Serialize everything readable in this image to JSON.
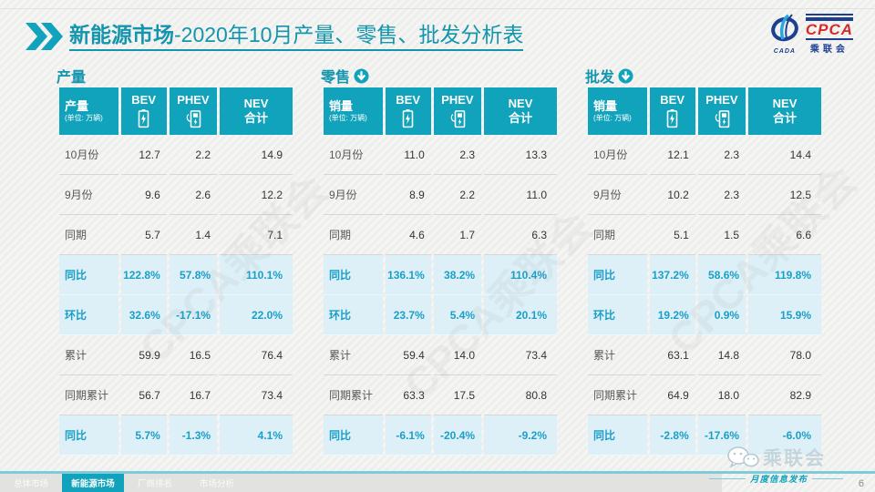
{
  "colors": {
    "accent": "#12a3bc",
    "accent_dark": "#1295ad",
    "accent_light": "#7ecbda",
    "highlight_bg": "#ddeff7",
    "highlight_text": "#1a9fc8"
  },
  "title": {
    "bold": "新能源市场",
    "rest": "-2020年10月产量、零售、批发分析表"
  },
  "logo": {
    "cpca": "CPCA",
    "cn_name": "乘联会",
    "cada": "CADA"
  },
  "watermark": "CPCA乘联会",
  "page_number": "6",
  "tables": [
    {
      "section": "产量",
      "header": {
        "metric": "产量",
        "unit": "(单位: 万辆)",
        "bev": "BEV",
        "phev": "PHEV",
        "nev_line1": "NEV",
        "nev_line2": "合计"
      },
      "rows": [
        {
          "label": "10月份",
          "values": [
            "12.7",
            "2.2",
            "14.9"
          ],
          "highlight": false
        },
        {
          "label": "9月份",
          "values": [
            "9.6",
            "2.6",
            "12.2"
          ],
          "highlight": false
        },
        {
          "label": "同期",
          "values": [
            "5.7",
            "1.4",
            "7.1"
          ],
          "highlight": false
        },
        {
          "label": "同比",
          "values": [
            "122.8%",
            "57.8%",
            "110.1%"
          ],
          "highlight": true
        },
        {
          "label": "环比",
          "values": [
            "32.6%",
            "-17.1%",
            "22.0%"
          ],
          "highlight": true
        },
        {
          "label": "累计",
          "values": [
            "59.9",
            "16.5",
            "76.4"
          ],
          "highlight": false
        },
        {
          "label": "同期累计",
          "values": [
            "56.7",
            "16.7",
            "73.4"
          ],
          "highlight": false
        },
        {
          "label": "同比",
          "values": [
            "5.7%",
            "-1.3%",
            "4.1%"
          ],
          "highlight": true
        }
      ]
    },
    {
      "section": "零售",
      "header": {
        "metric": "销量",
        "unit": "(单位: 万辆)",
        "bev": "BEV",
        "phev": "PHEV",
        "nev_line1": "NEV",
        "nev_line2": "合计"
      },
      "rows": [
        {
          "label": "10月份",
          "values": [
            "11.0",
            "2.3",
            "13.3"
          ],
          "highlight": false
        },
        {
          "label": "9月份",
          "values": [
            "8.9",
            "2.2",
            "11.0"
          ],
          "highlight": false
        },
        {
          "label": "同期",
          "values": [
            "4.6",
            "1.7",
            "6.3"
          ],
          "highlight": false
        },
        {
          "label": "同比",
          "values": [
            "136.1%",
            "38.2%",
            "110.4%"
          ],
          "highlight": true
        },
        {
          "label": "环比",
          "values": [
            "23.7%",
            "5.4%",
            "20.1%"
          ],
          "highlight": true
        },
        {
          "label": "累计",
          "values": [
            "59.4",
            "14.0",
            "73.4"
          ],
          "highlight": false
        },
        {
          "label": "同期累计",
          "values": [
            "63.3",
            "17.5",
            "80.8"
          ],
          "highlight": false
        },
        {
          "label": "同比",
          "values": [
            "-6.1%",
            "-20.4%",
            "-9.2%"
          ],
          "highlight": true
        }
      ]
    },
    {
      "section": "批发",
      "header": {
        "metric": "销量",
        "unit": "(单位: 万辆)",
        "bev": "BEV",
        "phev": "PHEV",
        "nev_line1": "NEV",
        "nev_line2": "合计"
      },
      "rows": [
        {
          "label": "10月份",
          "values": [
            "12.1",
            "2.3",
            "14.4"
          ],
          "highlight": false
        },
        {
          "label": "9月份",
          "values": [
            "10.2",
            "2.3",
            "12.5"
          ],
          "highlight": false
        },
        {
          "label": "同期",
          "values": [
            "5.1",
            "1.5",
            "6.6"
          ],
          "highlight": false
        },
        {
          "label": "同比",
          "values": [
            "137.2%",
            "58.6%",
            "119.8%"
          ],
          "highlight": true
        },
        {
          "label": "环比",
          "values": [
            "19.2%",
            "0.9%",
            "15.9%"
          ],
          "highlight": true
        },
        {
          "label": "累计",
          "values": [
            "63.1",
            "14.8",
            "78.0"
          ],
          "highlight": false
        },
        {
          "label": "同期累计",
          "values": [
            "64.9",
            "18.0",
            "82.9"
          ],
          "highlight": false
        },
        {
          "label": "同比",
          "values": [
            "-2.8%",
            "-17.6%",
            "-6.0%"
          ],
          "highlight": true
        }
      ]
    }
  ],
  "footer": {
    "tabs": [
      {
        "label": "总体市场",
        "active": false
      },
      {
        "label": "新能源市场",
        "active": true
      },
      {
        "label": "厂商排名",
        "active": false
      },
      {
        "label": "市场分析",
        "active": false
      }
    ],
    "wechat_label": "乘联会",
    "publication": "月度信息发布"
  }
}
